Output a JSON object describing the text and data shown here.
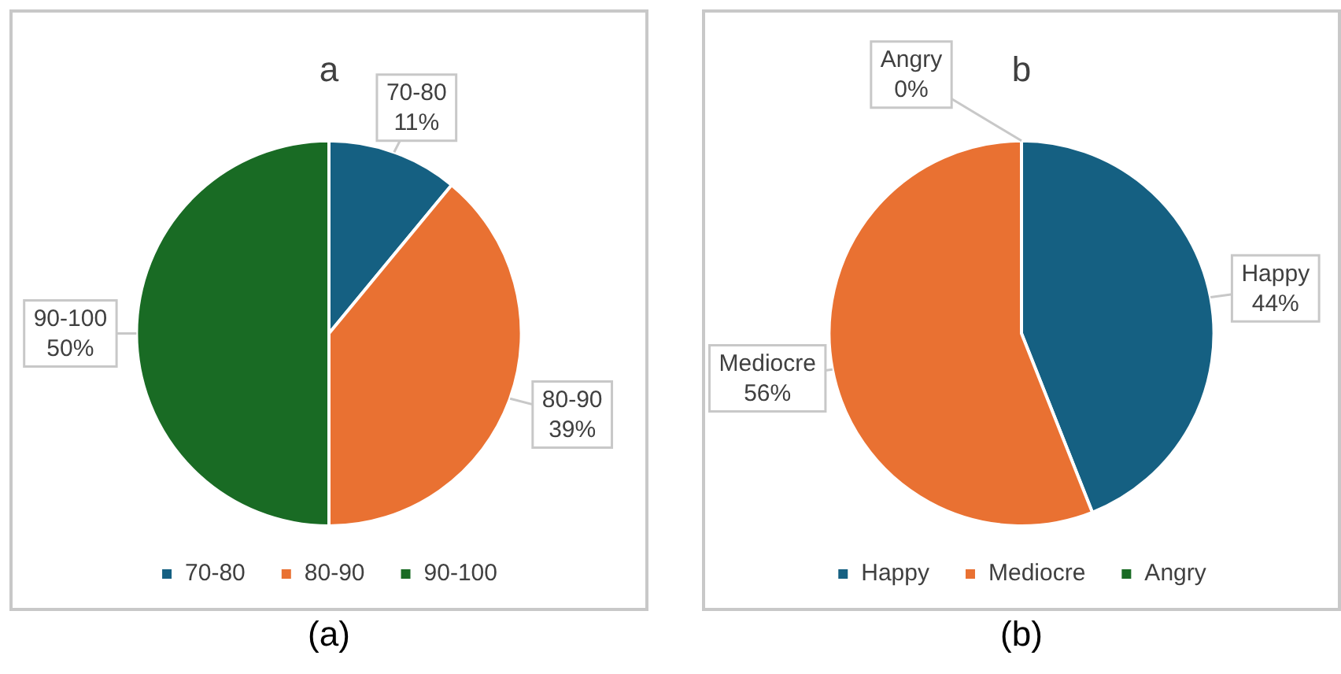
{
  "chart_data": [
    {
      "type": "pie",
      "title": "a",
      "categories": [
        "70-80",
        "80-90",
        "90-100"
      ],
      "values": [
        11,
        39,
        50
      ],
      "colors": [
        "#156082",
        "#e97132",
        "#196b24"
      ],
      "value_labels": [
        "11%",
        "39%",
        "50%"
      ],
      "legend": "bottom",
      "annotations": [
        "(a)"
      ]
    },
    {
      "type": "pie",
      "title": "b",
      "categories": [
        "Happy",
        "Mediocre",
        "Angry"
      ],
      "values": [
        44,
        56,
        0
      ],
      "colors": [
        "#156082",
        "#e97132",
        "#196b24"
      ],
      "value_labels": [
        "44%",
        "56%",
        "0%"
      ],
      "legend": "bottom",
      "annotations": [
        "(b)"
      ]
    }
  ]
}
